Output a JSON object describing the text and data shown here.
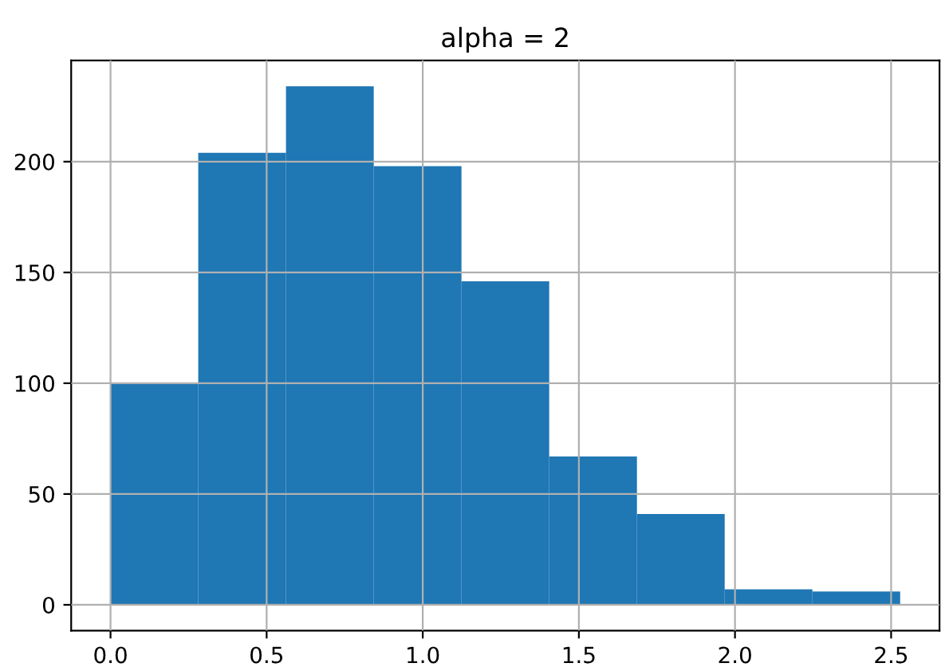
{
  "chart_data": {
    "type": "histogram",
    "title": "alpha = 2",
    "bins": [
      0.0,
      0.281,
      0.562,
      0.843,
      1.124,
      1.405,
      1.686,
      1.967,
      2.248,
      2.529
    ],
    "values": [
      100,
      204,
      234,
      198,
      146,
      67,
      41,
      7,
      6
    ],
    "color": "#1f77b4",
    "xlim": [
      -0.126,
      2.655
    ],
    "ylim": [
      -11.7,
      245.7
    ],
    "xticks": [
      {
        "value": 0.0,
        "label": "0.0"
      },
      0.5,
      {
        "value": 1.0,
        "label": "1.0"
      },
      1.5,
      {
        "value": 2.0,
        "label": "2.0"
      },
      2.5
    ],
    "yticks": [
      0,
      50,
      100,
      150,
      200
    ],
    "grid": true
  }
}
